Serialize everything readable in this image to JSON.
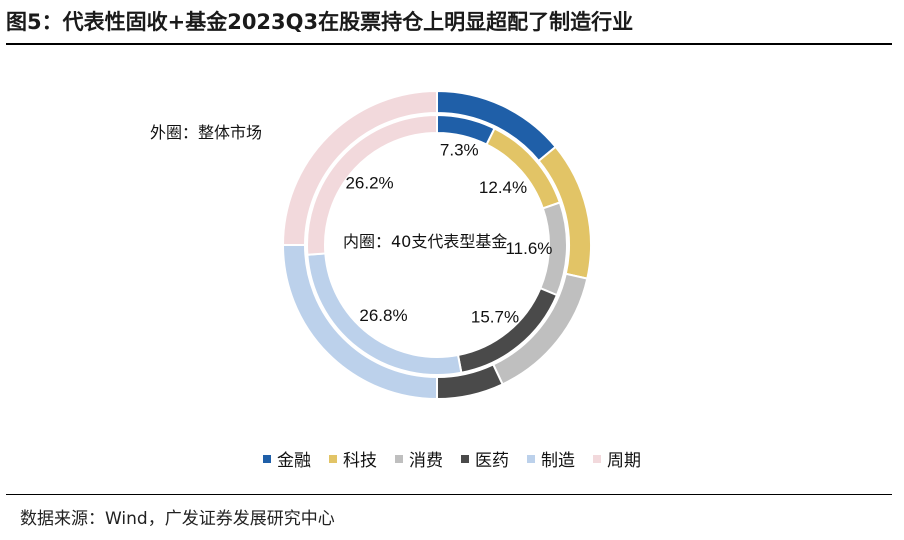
{
  "header": {
    "title": "图5：代表性固收+基金2023Q3在股票持仓上明显超配了制造行业"
  },
  "footer": {
    "source": "数据来源：Wind，广发证券发展研究中心"
  },
  "chart_data": {
    "type": "pie",
    "style": "nested-donut",
    "outer_label": "外圈：整体市场",
    "inner_label": "内圈：40支代表型基金",
    "categories": [
      "金融",
      "科技",
      "消费",
      "医药",
      "制造",
      "周期"
    ],
    "colors": [
      "#1f5fa8",
      "#e2c466",
      "#bfbfbf",
      "#4a4a4a",
      "#bcd1eb",
      "#f2d9dc"
    ],
    "series": [
      {
        "ring": "inner",
        "values": [
          7.3,
          12.4,
          11.6,
          15.7,
          26.8,
          26.2
        ]
      },
      {
        "ring": "outer",
        "values": [
          14.0,
          14.5,
          14.5,
          7.0,
          25.0,
          25.0
        ]
      }
    ],
    "data_labels": [
      "7.3%",
      "12.4%",
      "11.6%",
      "15.7%",
      "26.8%",
      "26.2%"
    ],
    "legend_position": "bottom"
  }
}
